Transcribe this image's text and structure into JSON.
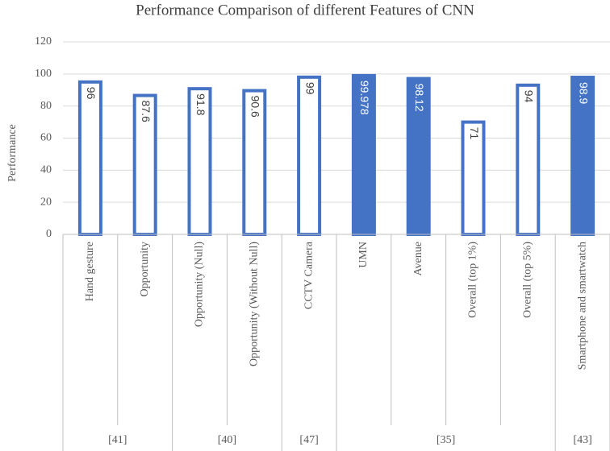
{
  "chart_data": {
    "type": "bar",
    "title": "Performance Comparison of different Features of CNN",
    "y_label": "Performance",
    "categories": [
      "Hand gesture",
      "Opportunity",
      "Opportunity (Null)",
      "Opportunity (Without Null)",
      "CCTV Camera",
      "UMN",
      "Avenue",
      "Overall (top 1%)",
      "Overall (top 5%)",
      "Smartphone and smartwatch"
    ],
    "values": [
      96,
      87.6,
      91.8,
      90.6,
      99,
      99.978,
      98.12,
      71,
      94,
      98.9
    ],
    "color": "#4472c4",
    "bar_fills": [
      "#ffffff",
      "#ffffff",
      "#ffffff",
      "#ffffff",
      "#ffffff",
      "#4472c4",
      "#4472c4",
      "#ffffff",
      "#ffffff",
      "#4472c4"
    ],
    "groups": [
      {
        "label": "[41]",
        "categories": [
          0,
          1
        ]
      },
      {
        "label": "[40]",
        "categories": [
          2,
          3
        ]
      },
      {
        "label": "[47]",
        "categories": [
          4
        ]
      },
      {
        "label": "[35]",
        "categories": [
          5,
          6,
          7,
          8
        ]
      },
      {
        "label": "[43]",
        "categories": [
          9
        ]
      }
    ],
    "ylim": [
      0,
      120
    ],
    "yticks": [
      0,
      20,
      40,
      60,
      80,
      100,
      120
    ],
    "grid": true
  }
}
